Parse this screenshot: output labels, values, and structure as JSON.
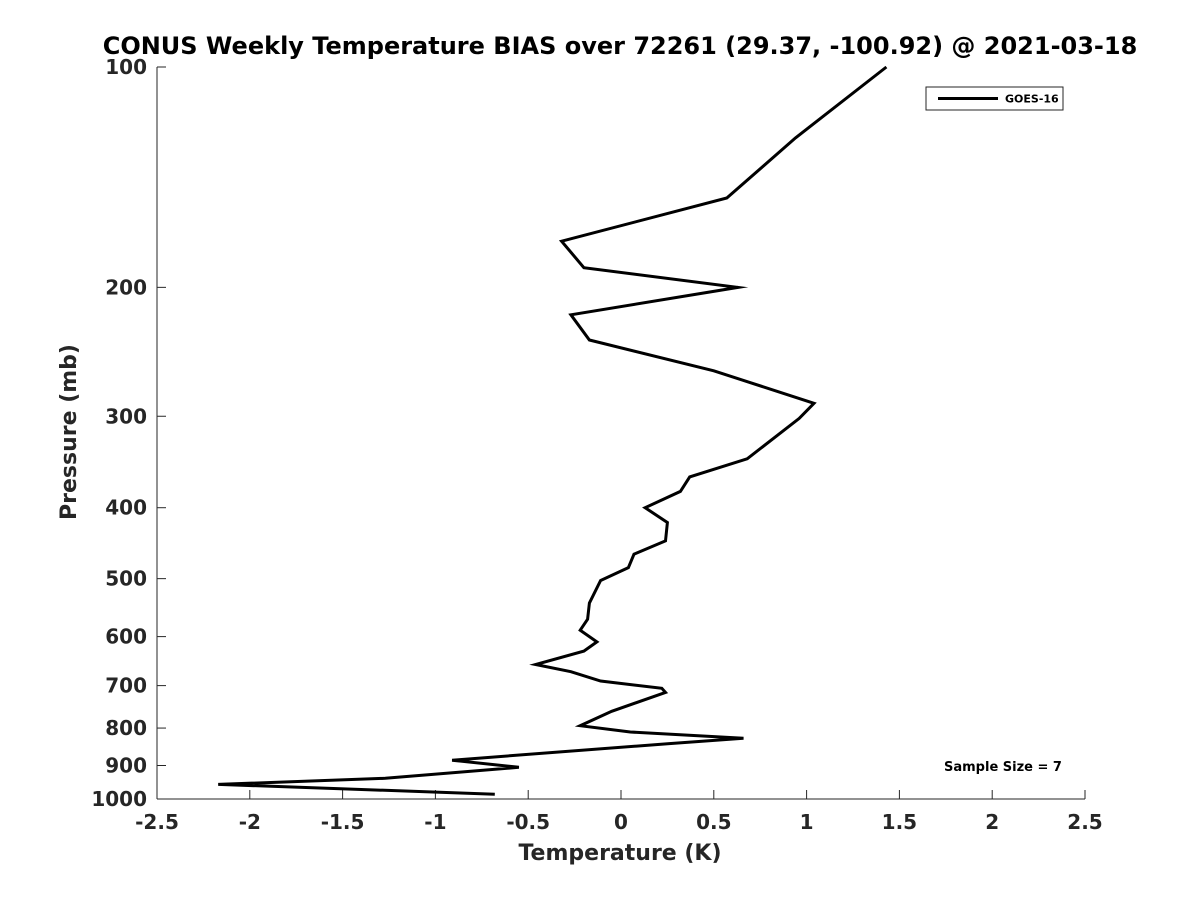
{
  "chart_data": {
    "type": "line",
    "title": "CONUS Weekly Temperature BIAS over 72261 (29.37, -100.92) @ 2021-03-18",
    "xlabel": "Temperature (K)",
    "ylabel": "Pressure (mb)",
    "xlim": [
      -2.5,
      2.5
    ],
    "ylim": [
      100,
      1000
    ],
    "yscale": "log",
    "yreversed": true,
    "x_ticks": [
      -2.5,
      -2,
      -1.5,
      -1,
      -0.5,
      0,
      0.5,
      1,
      1.5,
      2,
      2.5
    ],
    "x_tick_labels": [
      "-2.5",
      "-2",
      "-1.5",
      "-1",
      "-0.5",
      "0",
      "0.5",
      "1",
      "1.5",
      "2",
      "2.5"
    ],
    "y_ticks": [
      100,
      200,
      300,
      400,
      500,
      600,
      700,
      800,
      900,
      1000
    ],
    "y_tick_labels": [
      "100",
      "200",
      "300",
      "400",
      "500",
      "600",
      "700",
      "800",
      "900",
      "1000"
    ],
    "grid": false,
    "legend_position": "top-right",
    "series": [
      {
        "name": "GOES-16",
        "color": "#000000",
        "points": [
          {
            "t": 1.43,
            "p": 100
          },
          {
            "t": 0.94,
            "p": 125
          },
          {
            "t": 0.57,
            "p": 151
          },
          {
            "t": -0.32,
            "p": 173
          },
          {
            "t": -0.2,
            "p": 188
          },
          {
            "t": 0.63,
            "p": 200
          },
          {
            "t": -0.27,
            "p": 218
          },
          {
            "t": -0.17,
            "p": 236
          },
          {
            "t": 0.5,
            "p": 260
          },
          {
            "t": 1.04,
            "p": 288
          },
          {
            "t": 0.96,
            "p": 302
          },
          {
            "t": 0.68,
            "p": 343
          },
          {
            "t": 0.37,
            "p": 363
          },
          {
            "t": 0.32,
            "p": 380
          },
          {
            "t": 0.13,
            "p": 400
          },
          {
            "t": 0.25,
            "p": 419
          },
          {
            "t": 0.24,
            "p": 444
          },
          {
            "t": 0.07,
            "p": 463
          },
          {
            "t": 0.04,
            "p": 483
          },
          {
            "t": -0.11,
            "p": 503
          },
          {
            "t": -0.17,
            "p": 540
          },
          {
            "t": -0.18,
            "p": 568
          },
          {
            "t": -0.22,
            "p": 588
          },
          {
            "t": -0.13,
            "p": 610
          },
          {
            "t": -0.2,
            "p": 628
          },
          {
            "t": -0.46,
            "p": 655
          },
          {
            "t": -0.27,
            "p": 670
          },
          {
            "t": -0.11,
            "p": 690
          },
          {
            "t": 0.22,
            "p": 706
          },
          {
            "t": 0.24,
            "p": 715
          },
          {
            "t": -0.05,
            "p": 759
          },
          {
            "t": -0.22,
            "p": 794
          },
          {
            "t": 0.05,
            "p": 810
          },
          {
            "t": 0.66,
            "p": 826
          },
          {
            "t": 0.26,
            "p": 840
          },
          {
            "t": -0.91,
            "p": 885
          },
          {
            "t": -0.55,
            "p": 905
          },
          {
            "t": -1.27,
            "p": 937
          },
          {
            "t": -2.17,
            "p": 955
          },
          {
            "t": -0.68,
            "p": 985
          }
        ]
      }
    ],
    "annotations": [
      {
        "text": "Sample Size = 7",
        "position": "bottom-right"
      }
    ]
  }
}
